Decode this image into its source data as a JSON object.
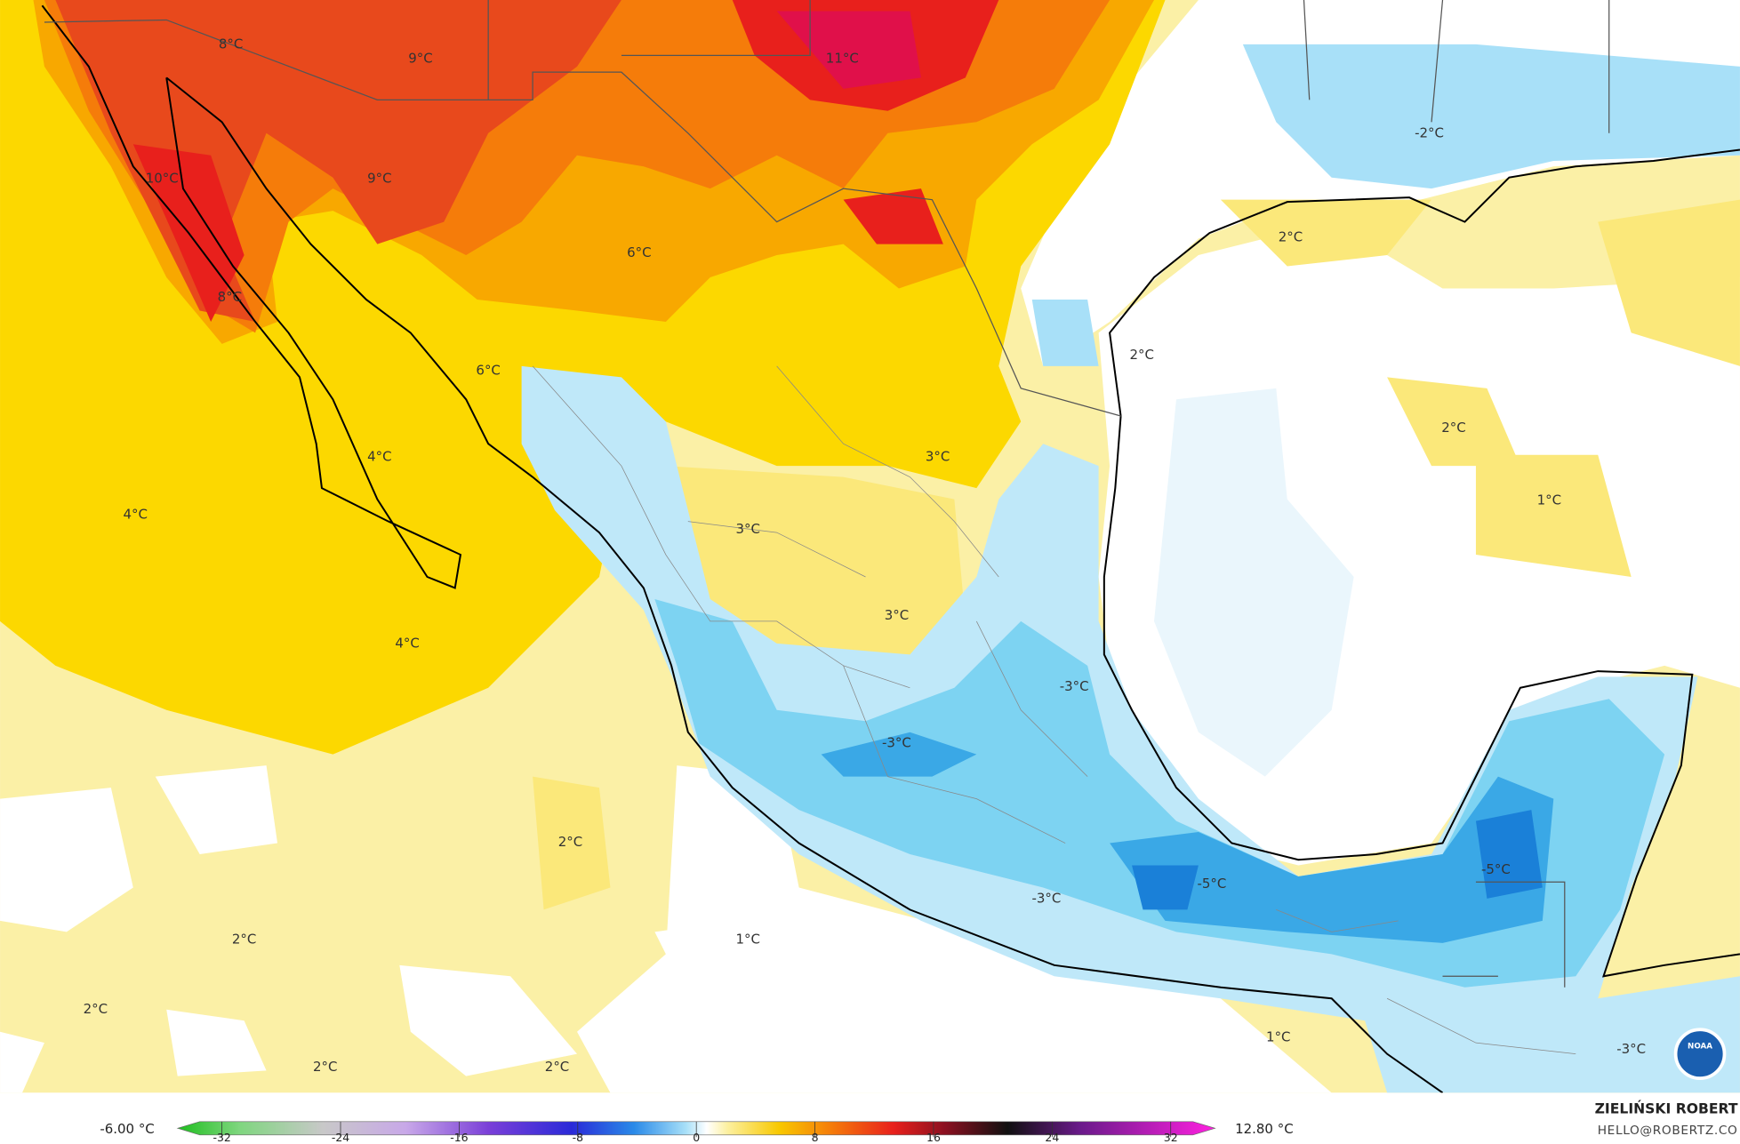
{
  "map": {
    "labels": [
      "8°C",
      "9°C",
      "11°C",
      "10°C",
      "9°C",
      "6°C",
      "8°C",
      "6°C",
      "4°C",
      "4°C",
      "3°C",
      "3°C",
      "3°C",
      "4°C",
      "-2°C",
      "2°C",
      "2°C",
      "2°C",
      "1°C",
      "-3°C",
      "-3°C",
      "2°C",
      "-5°C",
      "-5°C",
      "-3°C",
      "2°C",
      "1°C",
      "2°C",
      "2°C",
      "2°C",
      "1°C",
      "-3°C"
    ]
  },
  "colorbar": {
    "ticks": [
      -32,
      -24,
      -16,
      -8,
      0,
      8,
      16,
      24,
      32
    ],
    "min_label": "-6.00 °C",
    "max_label": "12.80 °C"
  },
  "credit": {
    "name": "ZIELIŃSKI ROBERT",
    "email": "HELLO@ROBERTZ.CO"
  },
  "logo": "NOAA"
}
